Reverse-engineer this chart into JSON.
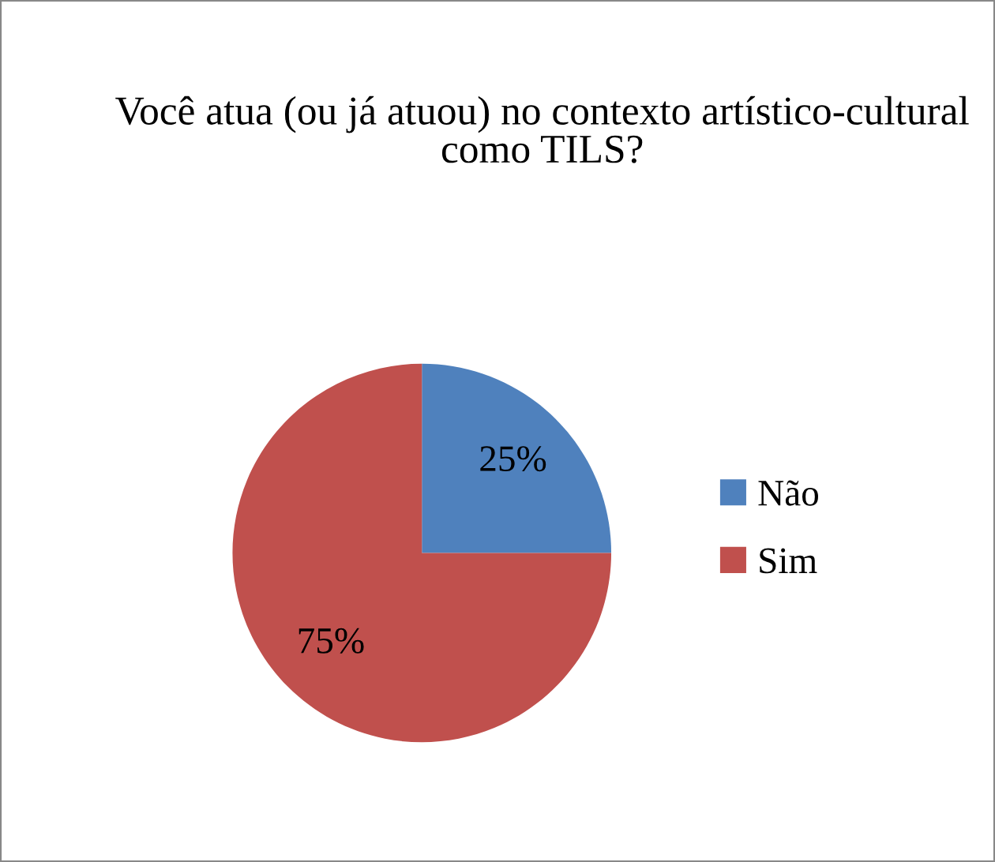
{
  "chart_data": {
    "type": "pie",
    "title": "Você atua (ou já atuou) no contexto artístico-cultural como TILS?",
    "categories": [
      "Não",
      "Sim"
    ],
    "values": [
      25,
      75
    ],
    "colors": [
      "#4f81bd",
      "#c0504d"
    ],
    "value_labels": [
      "25%",
      "75%"
    ],
    "legend": "right"
  }
}
